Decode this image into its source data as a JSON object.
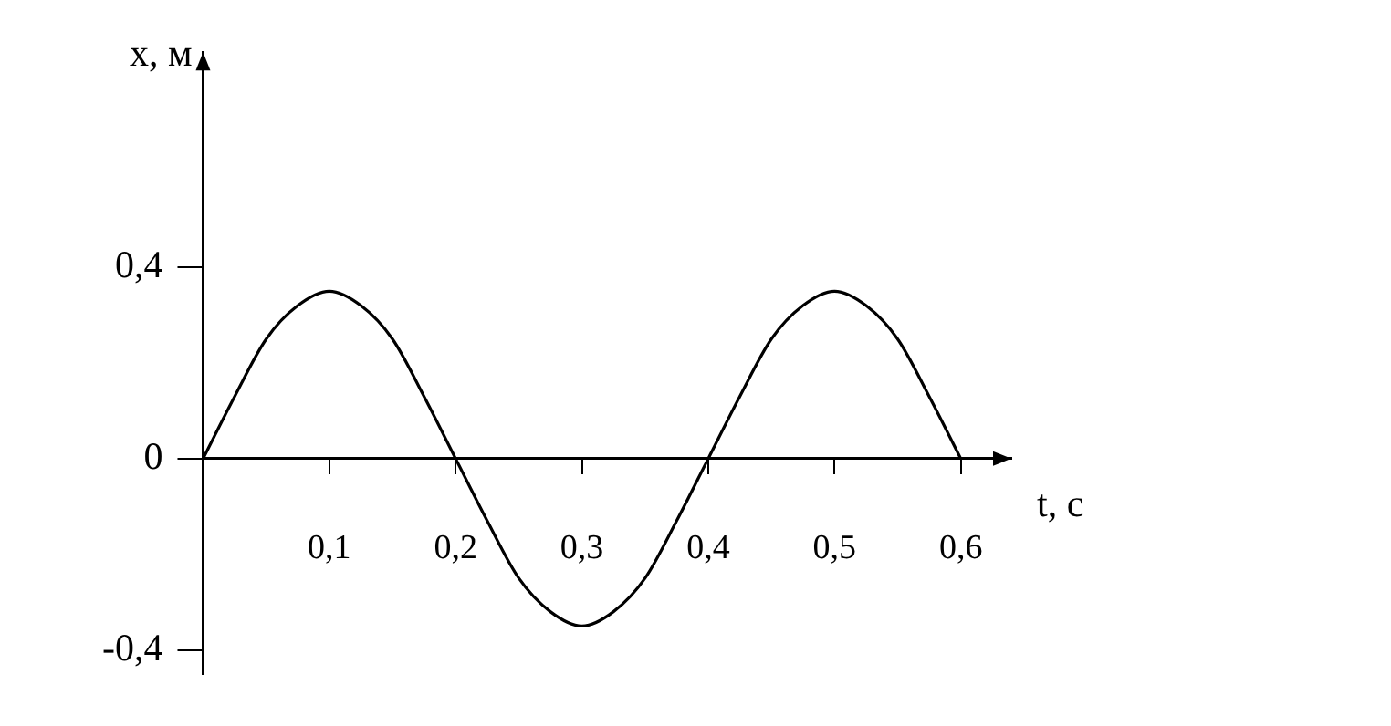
{
  "chart_data": {
    "type": "line",
    "xlabel": "t, с",
    "ylabel": "x, м",
    "x": [
      0,
      0.025,
      0.05,
      0.075,
      0.1,
      0.125,
      0.15,
      0.175,
      0.2,
      0.225,
      0.25,
      0.275,
      0.3,
      0.325,
      0.35,
      0.375,
      0.4,
      0.425,
      0.45,
      0.475,
      0.5,
      0.525,
      0.55,
      0.575,
      0.6
    ],
    "series": [
      {
        "color": "#000000",
        "values": [
          0,
          0.13,
          0.25,
          0.32,
          0.35,
          0.32,
          0.25,
          0.13,
          0,
          -0.13,
          -0.25,
          -0.32,
          -0.35,
          -0.32,
          -0.25,
          -0.13,
          0,
          0.13,
          0.25,
          0.32,
          0.35,
          0.32,
          0.25,
          0.13,
          0
        ]
      }
    ],
    "xlim": [
      0,
      0.64
    ],
    "ylim": [
      -0.45,
      0.85
    ],
    "xticks": [
      {
        "value": 0.1,
        "label": "0,1"
      },
      {
        "value": 0.2,
        "label": "0,2"
      },
      {
        "value": 0.3,
        "label": "0,3"
      },
      {
        "value": 0.4,
        "label": "0,4"
      },
      {
        "value": 0.5,
        "label": "0,5"
      },
      {
        "value": 0.6,
        "label": "0,6"
      }
    ],
    "yticks": [
      {
        "value": -0.4,
        "label": "-0,4"
      },
      {
        "value": 0,
        "label": "0"
      },
      {
        "value": 0.4,
        "label": "0,4"
      }
    ],
    "grid": false,
    "legend": false,
    "marker": "none",
    "line_style": "solid"
  }
}
